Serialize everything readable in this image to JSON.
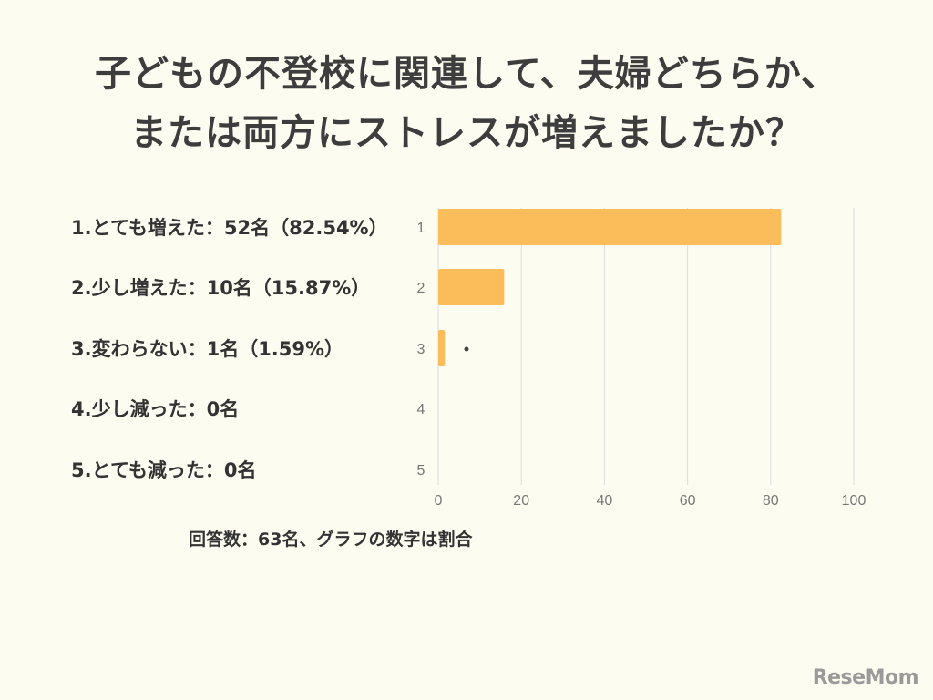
{
  "title": {
    "line1": "子どもの不登校に関連して、夫婦どちらか、",
    "line2": "または両方にストレスが増えましたか？"
  },
  "labels": [
    "1.とても増えた：52名（82.54%）",
    "2.少し増えた：10名（15.87%）",
    "3.変わらない：1名（1.59%）",
    "4.少し減った：0名",
    "5.とても減った：0名"
  ],
  "footnote": "回答数：63名、グラフの数字は割合",
  "brand": "ReseMom",
  "chart_data": {
    "type": "bar",
    "orientation": "horizontal",
    "categories": [
      "1",
      "2",
      "3",
      "4",
      "5"
    ],
    "values": [
      82.54,
      15.87,
      1.59,
      0,
      0
    ],
    "xlim": [
      0,
      100
    ],
    "xticks": [
      0,
      20,
      40,
      60,
      80,
      100
    ],
    "grid": true,
    "bar_color": "#fbbd5a",
    "grid_color": "#dcdcdc"
  }
}
